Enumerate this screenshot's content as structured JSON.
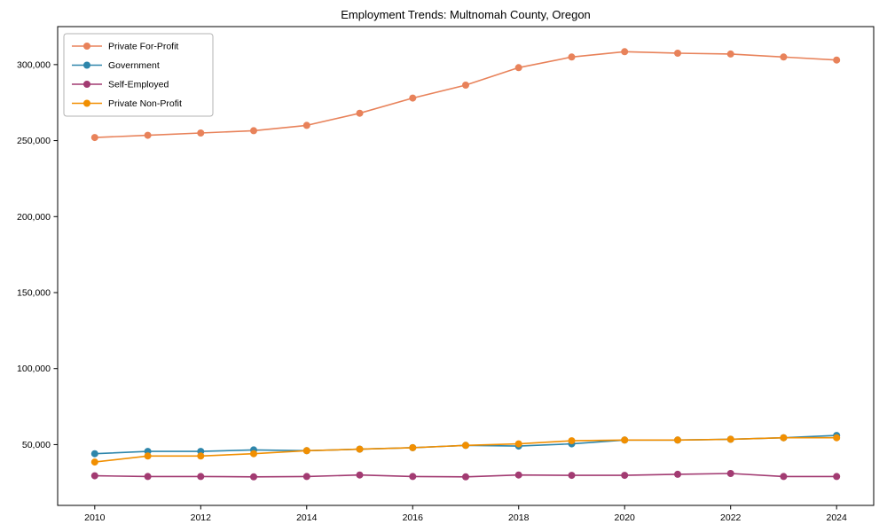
{
  "chart_data": {
    "type": "line",
    "title": "Employment Trends: Multnomah County, Oregon",
    "xlabel": "",
    "ylabel": "",
    "x": [
      2010,
      2011,
      2012,
      2013,
      2014,
      2015,
      2016,
      2017,
      2018,
      2019,
      2020,
      2021,
      2022,
      2023,
      2024
    ],
    "series": [
      {
        "name": "Private For-Profit",
        "color": "#E8825A",
        "values": [
          252000,
          253500,
          255000,
          256500,
          260000,
          268000,
          278000,
          286500,
          298000,
          305000,
          308500,
          307500,
          307000,
          305000,
          303000
        ]
      },
      {
        "name": "Government",
        "color": "#2E86AB",
        "values": [
          44000,
          45500,
          45500,
          46500,
          46000,
          47000,
          48000,
          49500,
          49000,
          50500,
          53000,
          53000,
          53500,
          54500,
          56000
        ]
      },
      {
        "name": "Self-Employed",
        "color": "#A23B72",
        "values": [
          29500,
          29000,
          29000,
          28800,
          29000,
          30000,
          29000,
          28800,
          30000,
          29800,
          29800,
          30500,
          31000,
          29000,
          29000
        ]
      },
      {
        "name": "Private Non-Profit",
        "color": "#F18F01",
        "values": [
          38500,
          42500,
          42500,
          44000,
          46000,
          47000,
          48000,
          49500,
          50500,
          52500,
          53000,
          53000,
          53500,
          54500,
          54500
        ]
      }
    ],
    "xlim": [
      2009.3,
      2024.7
    ],
    "ylim": [
      10000,
      325000
    ],
    "xtick_values": [
      2010,
      2012,
      2014,
      2016,
      2018,
      2020,
      2022,
      2024
    ],
    "xtick_labels": [
      "2010",
      "2012",
      "2014",
      "2016",
      "2018",
      "2020",
      "2022",
      "2024"
    ],
    "ytick_values": [
      50000,
      100000,
      150000,
      200000,
      250000,
      300000
    ],
    "ytick_labels": [
      "50,000",
      "100,000",
      "150,000",
      "200,000",
      "250,000",
      "300,000"
    ],
    "grid": false,
    "legend_position": "upper left",
    "marker": "circle",
    "axis_color": "#000000"
  }
}
